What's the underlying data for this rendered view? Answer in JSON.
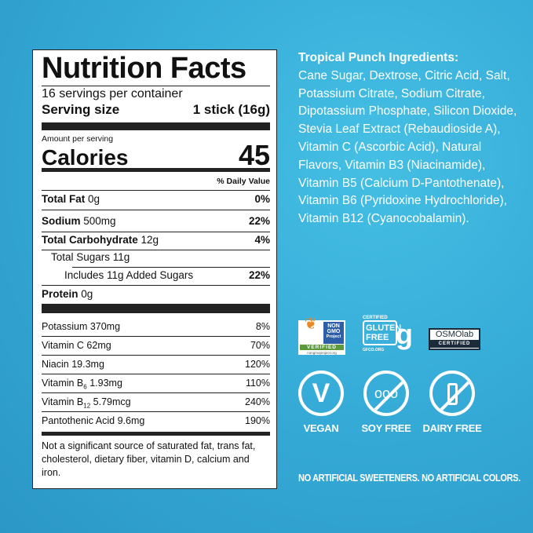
{
  "label": {
    "title": "Nutrition Facts",
    "servings": "16 servings per container",
    "serving_size_label": "Serving size",
    "serving_size_value": "1 stick (16g)",
    "amount_per_serving": "Amount per serving",
    "calories_label": "Calories",
    "calories_value": "45",
    "daily_value_header": "% Daily Value",
    "nutrients": [
      {
        "name": "Total Fat",
        "amount": "0g",
        "dv": "0%"
      },
      {
        "name": "Sodium",
        "amount": "500mg",
        "dv": "22%"
      },
      {
        "name": "Total Carbohydrate",
        "amount": "12g",
        "dv": "4%"
      },
      {
        "name": "Total Sugars 11g",
        "amount": "",
        "dv": ""
      },
      {
        "name": "Includes 11g Added Sugars",
        "amount": "",
        "dv": "22%"
      },
      {
        "name": "Protein",
        "amount": "0g",
        "dv": ""
      }
    ],
    "vitamins": [
      {
        "name": "Potassium 370mg",
        "dv": "8%"
      },
      {
        "name": "Vitamin C 62mg",
        "dv": "70%"
      },
      {
        "name": "Niacin 19.3mg",
        "dv": "120%"
      },
      {
        "name": "Vitamin B",
        "sub": "6",
        "amount": "1.93mg",
        "dv": "110%"
      },
      {
        "name": "Vitamin B",
        "sub": "12",
        "amount": "5.79mcg",
        "dv": "240%"
      },
      {
        "name": "Pantothenic Acid 9.6mg",
        "dv": "190%"
      }
    ],
    "footnote": "Not a significant source of saturated fat, trans fat, cholesterol, dietary fiber, vitamin D, calcium and iron."
  },
  "ingredients": {
    "title": "Tropical Punch Ingredients:",
    "text": "Cane Sugar, Dextrose, Citric Acid, Salt, Potassium Citrate, Sodium Citrate, Dipotassium Phosphate, Silicon Dioxide, Stevia Leaf Extract (Rebaudioside A), Vitamin C (Ascorbic Acid), Natural Flavors, Vitamin B3 (Niacinamide), Vitamin B5 (Calcium D-Pantothenate), Vitamin B6 (Pyridoxine Hydrochloride), Vitamin B12 (Cyanocobalamin)."
  },
  "badges": {
    "nongmo": {
      "line1": "NON",
      "line2": "GMO",
      "line3": "Project",
      "verified": "VERIFIED",
      "url": "nongmoproject.org"
    },
    "gluten": {
      "certified": "CERTIFIED",
      "line1": "GLUTEN",
      "line2": "FREE",
      "url": "GFCO.ORG"
    },
    "osmo": {
      "name": "OSMOlab",
      "certified": "CERTIFIED"
    }
  },
  "icons": [
    {
      "icon": "vegan-leaf-icon",
      "label": "VEGAN"
    },
    {
      "icon": "soy-free-icon",
      "label": "SOY FREE"
    },
    {
      "icon": "dairy-free-icon",
      "label": "DAIRY FREE"
    }
  ],
  "tagline": "NO ARTIFICIAL SWEETENERS. NO ARTIFICIAL COLORS.",
  "colors": {
    "background": "#36acd8",
    "text": "#ffffff",
    "label_bg": "#ffffff"
  }
}
